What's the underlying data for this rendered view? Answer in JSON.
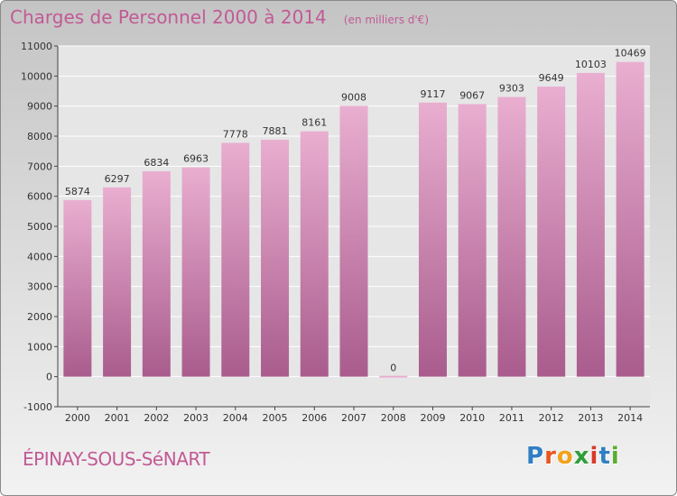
{
  "title": "Charges de Personnel 2000 à 2014",
  "unit_note": "(en milliers d'€)",
  "commune": "ÉPINAY-SOUS-SéNART",
  "logo": {
    "letters": [
      "P",
      "r",
      "o",
      "x",
      "i",
      "t",
      "i"
    ],
    "colors": [
      "#2f7fc4",
      "#e8561e",
      "#f2a21a",
      "#2f9e3a",
      "#d63a2a",
      "#2f7fc4",
      "#5aae2e"
    ]
  },
  "colors": {
    "accent": "#c25a95",
    "bar_top": "#e9aed0",
    "bar_bottom": "#a95c8d"
  },
  "chart_data": {
    "type": "bar",
    "title": "Charges de Personnel 2000 à 2014",
    "subtitle": "(en milliers d'€)",
    "categories": [
      "2000",
      "2001",
      "2002",
      "2003",
      "2004",
      "2005",
      "2006",
      "2007",
      "2008",
      "2009",
      "2010",
      "2011",
      "2012",
      "2013",
      "2014"
    ],
    "values": [
      5874,
      6297,
      6834,
      6963,
      7778,
      7881,
      8161,
      9008,
      0,
      9117,
      9067,
      9303,
      9649,
      10103,
      10469
    ],
    "data_labels": [
      "5874",
      "6297",
      "6834",
      "6963",
      "7778",
      "7881",
      "8161",
      "9008",
      "0",
      "9117",
      "9067",
      "9303",
      "9649",
      "10103",
      "10469"
    ],
    "ylim": [
      -1000,
      11000
    ],
    "yticks": [
      -1000,
      0,
      1000,
      2000,
      3000,
      4000,
      5000,
      6000,
      7000,
      8000,
      9000,
      10000,
      11000
    ],
    "ytick_labels": [
      "-1000",
      "0",
      "1000",
      "2000",
      "3000",
      "4000",
      "5000",
      "6000",
      "7000",
      "8000",
      "9000",
      "10000",
      "11000"
    ],
    "grid": true,
    "legend": "none"
  }
}
